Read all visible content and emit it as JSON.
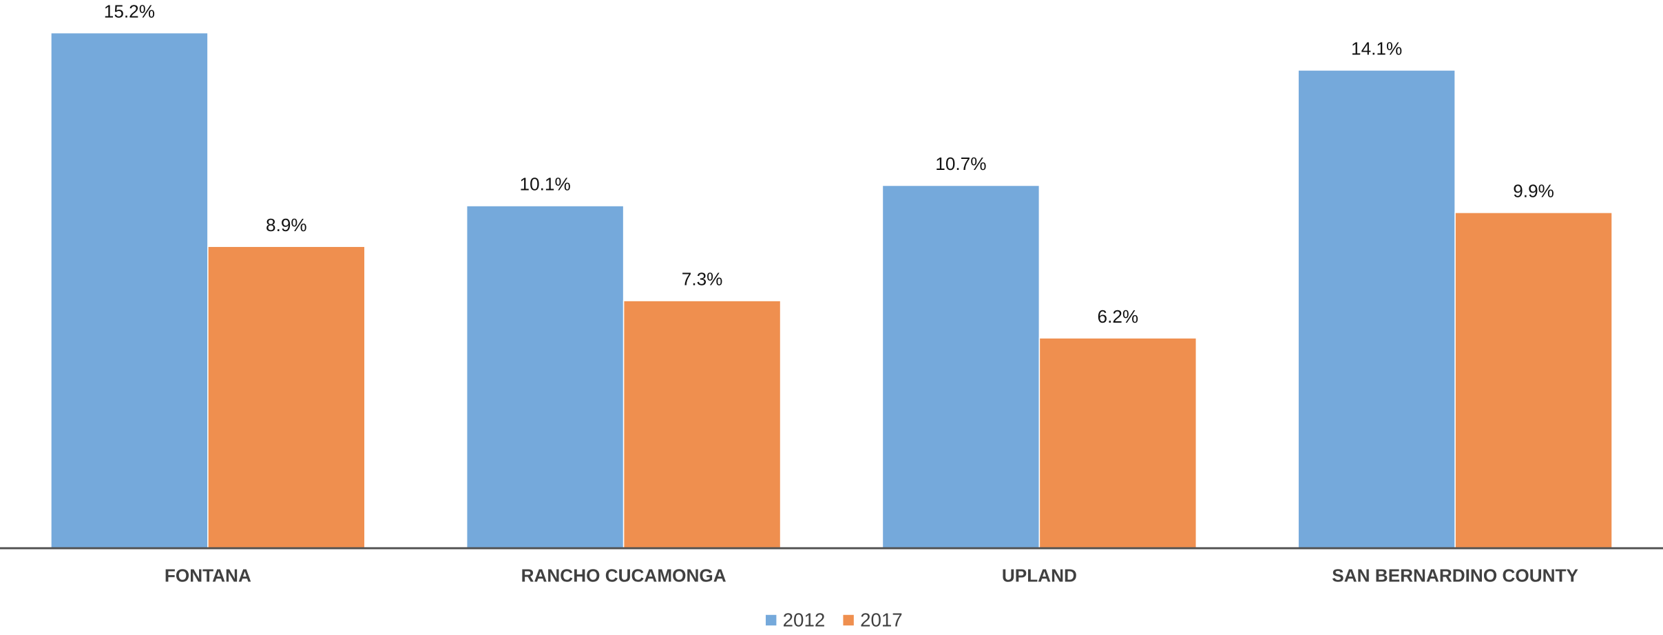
{
  "chart_data": {
    "type": "bar",
    "categories": [
      "FONTANA",
      "RANCHO CUCAMONGA",
      "UPLAND",
      "SAN BERNARDINO COUNTY"
    ],
    "series": [
      {
        "name": "2012",
        "color": "#75a9db",
        "values": [
          15.2,
          10.1,
          10.7,
          14.1
        ],
        "value_labels": [
          "15.2%",
          "10.1%",
          "10.7%",
          "14.1%"
        ]
      },
      {
        "name": "2017",
        "color": "#ef8f4f",
        "values": [
          8.9,
          7.3,
          6.2,
          9.9
        ],
        "value_labels": [
          "8.9%",
          "7.3%",
          "6.2%",
          "9.9%"
        ]
      }
    ],
    "legend": "bottom"
  }
}
